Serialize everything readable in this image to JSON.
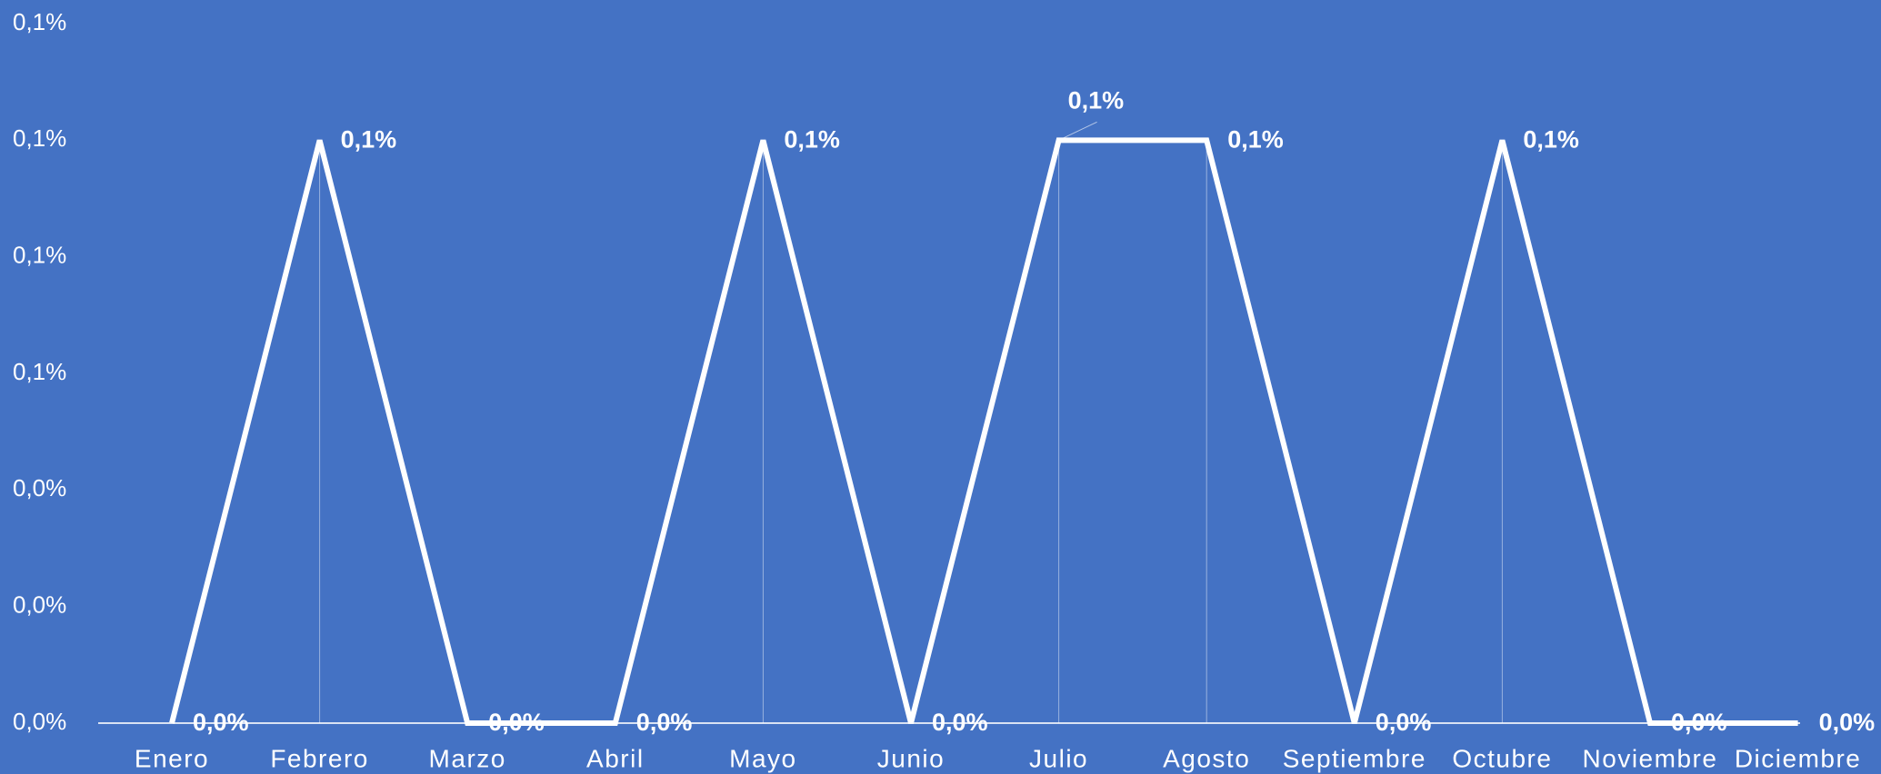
{
  "chart_data": {
    "type": "line",
    "categories": [
      "Enero",
      "Febrero",
      "Marzo",
      "Abril",
      "Mayo",
      "Junio",
      "Julio",
      "Agosto",
      "Septiembre",
      "Octubre",
      "Noviembre",
      "Diciembre"
    ],
    "series": [
      {
        "color": "#ffffff",
        "values": [
          0,
          0.1,
          0,
          0,
          0.1,
          0,
          0.1,
          0.1,
          0,
          0.1,
          0,
          0
        ],
        "value_labels": [
          "0,0%",
          "0,1%",
          "0,0%",
          "0,0%",
          "0,1%",
          "0,0%",
          "0,1%",
          "0,1%",
          "0,0%",
          "0,1%",
          "0,0%",
          "0,0%"
        ]
      }
    ],
    "ylim": [
      0,
      0.12
    ],
    "yticks": [
      {
        "value": 0,
        "label": "0,0%"
      },
      {
        "value": 0.02,
        "label": "0,0%"
      },
      {
        "value": 0.04,
        "label": "0,0%"
      },
      {
        "value": 0.06,
        "label": "0,1%"
      },
      {
        "value": 0.08,
        "label": "0,1%"
      },
      {
        "value": 0.1,
        "label": "0,1%"
      },
      {
        "value": 0.12,
        "label": "0,1%"
      }
    ],
    "drop_lines": true
  }
}
